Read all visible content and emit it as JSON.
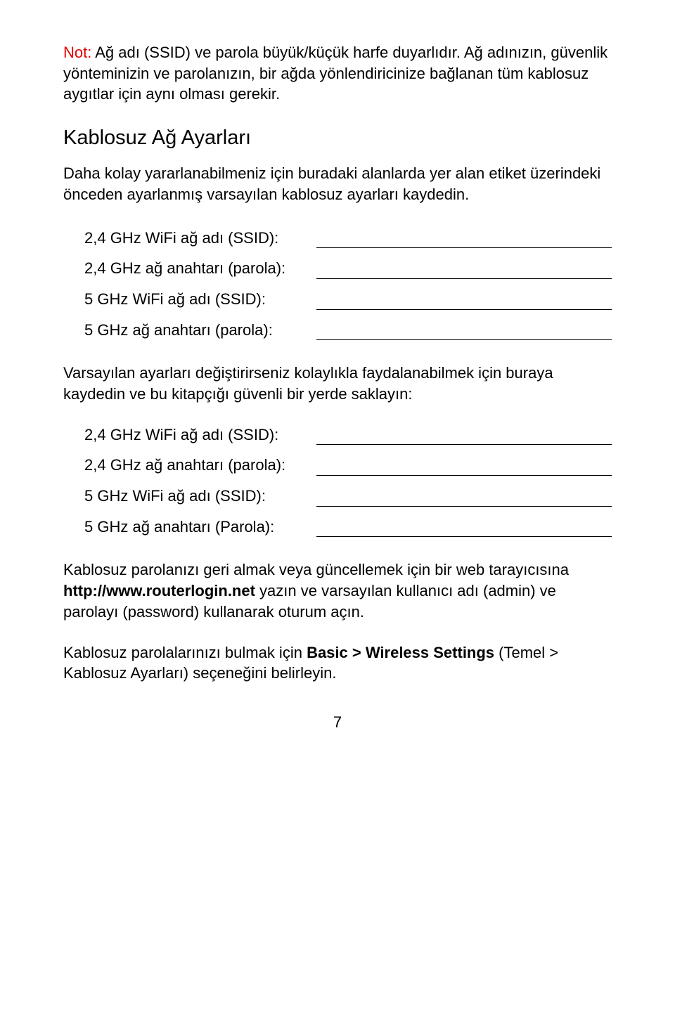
{
  "note": {
    "label": "Not:",
    "text": " Ağ adı (SSID) ve parola büyük/küçük harfe duyarlıdır. Ağ adınızın, güvenlik yönteminizin ve parolanızın, bir ağda yönlendiricinize bağlanan tüm kablosuz aygıtlar için aynı olması gerekir.",
    "label_color": "#e80000"
  },
  "section": {
    "title": "Kablosuz Ağ Ayarları",
    "body": "Daha kolay yararlanabilmeniz için buradaki alanlarda yer alan etiket üzerindeki önceden ayarlanmış varsayılan kablosuz ayarları kaydedin."
  },
  "form1": {
    "rows": [
      "2,4 GHz WiFi ağ adı (SSID):",
      "2,4 GHz ağ anahtarı (parola):",
      "5 GHz WiFi ağ adı (SSID):",
      "5 GHz ağ anahtarı (parola):"
    ]
  },
  "para2": "Varsayılan ayarları değiştirirseniz kolaylıkla faydalanabilmek için buraya kaydedin ve bu kitapçığı güvenli bir yerde saklayın:",
  "form2": {
    "rows": [
      "2,4 GHz WiFi ağ adı (SSID):",
      "2,4 GHz ağ anahtarı (parola):",
      "5 GHz WiFi ağ adı (SSID):",
      "5 GHz ağ anahtarı (Parola):"
    ]
  },
  "recover": {
    "p1a": "Kablosuz parolanızı geri almak veya güncellemek için bir web tarayıcısına ",
    "p1b": "http://www.routerlogin.net",
    "p1c": " yazın ve varsayılan kullanıcı adı (admin) ve parolayı (password) kullanarak oturum açın.",
    "p2a": "Kablosuz parolalarınızı bulmak için ",
    "p2b": "Basic > Wireless Settings",
    "p2c": " (Temel > Kablosuz Ayarları) seçeneğini belirleyin."
  },
  "page_number": "7"
}
